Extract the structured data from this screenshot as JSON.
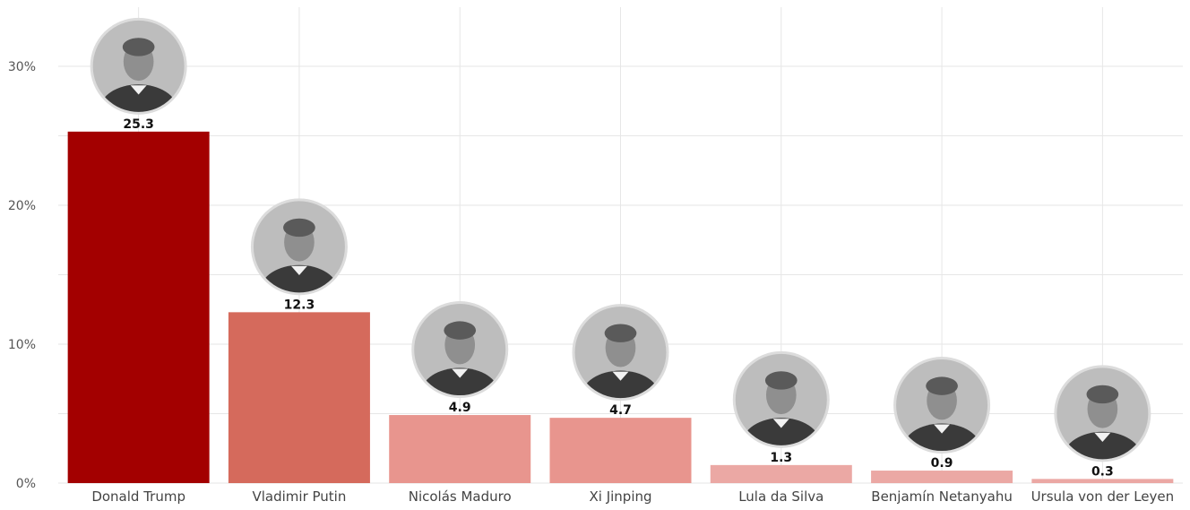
{
  "chart_data": {
    "type": "bar",
    "categories": [
      "Donald Trump",
      "Vladimir Putin",
      "Nicolás Maduro",
      "Xi Jinping",
      "Lula da Silva",
      "Benjamín Netanyahu",
      "Ursula von der Leyen"
    ],
    "values": [
      25.3,
      12.3,
      4.9,
      4.7,
      1.3,
      0.9,
      0.3
    ],
    "value_labels": [
      "25.3",
      "12.3",
      "4.9",
      "4.7",
      "1.3",
      "0.9",
      "0.3"
    ],
    "bar_colors": [
      "#a30000",
      "#d56a5c",
      "#e8958e",
      "#e8958e",
      "#eba8a4",
      "#eba8a4",
      "#eba8a4"
    ],
    "y_ticks": [
      0,
      10,
      20,
      30
    ],
    "y_tick_labels": [
      "0%",
      "10%",
      "20%",
      "30%"
    ],
    "ylim": [
      0,
      34
    ],
    "grid": true,
    "legend": "none",
    "title": "",
    "xlabel": "",
    "ylabel": "",
    "portraits": [
      "portrait-photo",
      "portrait-photo",
      "portrait-photo",
      "portrait-photo",
      "portrait-photo",
      "portrait-photo",
      "portrait-photo"
    ]
  }
}
